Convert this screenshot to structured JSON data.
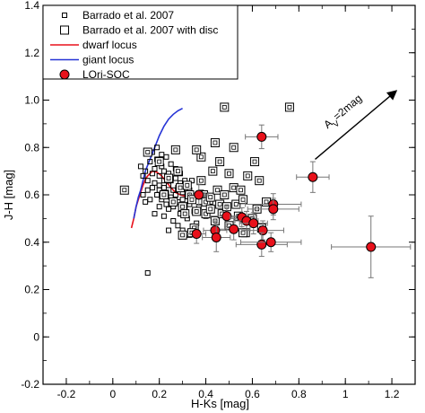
{
  "chart_data": {
    "type": "scatter",
    "title": "",
    "xlabel": "H-Ks [mag]",
    "ylabel": "J-H [mag]",
    "xlim": [
      -0.3,
      1.3
    ],
    "ylim": [
      -0.2,
      1.4
    ],
    "xticks": [
      -0.2,
      0,
      0.2,
      0.4,
      0.6,
      0.8,
      1,
      1.2
    ],
    "xtick_labels": [
      "-0.2",
      "0",
      "0.2",
      "0.4",
      "0.6",
      "0.8",
      "1",
      "1.2"
    ],
    "yticks": [
      -0.2,
      0,
      0.2,
      0.4,
      0.6,
      0.8,
      1.0,
      1.2,
      1.4
    ],
    "ytick_labels": [
      "-0.2",
      "0",
      "0.2",
      "0.4",
      "0.6",
      "0.8",
      "1.0",
      "1.2",
      "1.4"
    ],
    "grid": false,
    "legend_position": "top-left",
    "annotation": {
      "text_main": "A",
      "text_sub": "V",
      "text_rest": "=2mag",
      "arrow_from": [
        0.87,
        0.75
      ],
      "arrow_to": [
        1.22,
        1.04
      ]
    },
    "series": [
      {
        "name": "Barrado et al. 2007",
        "kind": "small-square",
        "color": "#000000",
        "points": [
          [
            0.12,
            0.72
          ],
          [
            0.13,
            0.68
          ],
          [
            0.14,
            0.7
          ],
          [
            0.15,
            0.66
          ],
          [
            0.16,
            0.74
          ],
          [
            0.17,
            0.69
          ],
          [
            0.17,
            0.63
          ],
          [
            0.18,
            0.71
          ],
          [
            0.18,
            0.65
          ],
          [
            0.19,
            0.6
          ],
          [
            0.19,
            0.75
          ],
          [
            0.2,
            0.68
          ],
          [
            0.2,
            0.62
          ],
          [
            0.21,
            0.72
          ],
          [
            0.21,
            0.58
          ],
          [
            0.22,
            0.66
          ],
          [
            0.22,
            0.7
          ],
          [
            0.23,
            0.61
          ],
          [
            0.23,
            0.56
          ],
          [
            0.24,
            0.64
          ],
          [
            0.24,
            0.69
          ],
          [
            0.25,
            0.59
          ],
          [
            0.25,
            0.73
          ],
          [
            0.26,
            0.62
          ],
          [
            0.26,
            0.55
          ],
          [
            0.27,
            0.67
          ],
          [
            0.27,
            0.6
          ],
          [
            0.28,
            0.63
          ],
          [
            0.28,
            0.57
          ],
          [
            0.29,
            0.65
          ],
          [
            0.29,
            0.52
          ],
          [
            0.3,
            0.61
          ],
          [
            0.3,
            0.58
          ],
          [
            0.31,
            0.54
          ],
          [
            0.32,
            0.6
          ],
          [
            0.32,
            0.5
          ],
          [
            0.33,
            0.56
          ],
          [
            0.34,
            0.59
          ],
          [
            0.35,
            0.53
          ],
          [
            0.36,
            0.48
          ],
          [
            0.16,
            0.58
          ],
          [
            0.15,
            0.62
          ],
          [
            0.14,
            0.57
          ],
          [
            0.13,
            0.6
          ],
          [
            0.18,
            0.52
          ],
          [
            0.2,
            0.55
          ],
          [
            0.22,
            0.51
          ],
          [
            0.24,
            0.54
          ],
          [
            0.26,
            0.49
          ],
          [
            0.28,
            0.47
          ],
          [
            0.17,
            0.78
          ],
          [
            0.19,
            0.8
          ],
          [
            0.21,
            0.77
          ],
          [
            0.23,
            0.76
          ],
          [
            0.2,
            0.64
          ],
          [
            0.22,
            0.63
          ],
          [
            0.25,
            0.66
          ],
          [
            0.27,
            0.71
          ],
          [
            0.29,
            0.69
          ],
          [
            0.31,
            0.66
          ],
          [
            0.33,
            0.62
          ],
          [
            0.34,
            0.66
          ],
          [
            0.37,
            0.55
          ],
          [
            0.38,
            0.61
          ],
          [
            0.4,
            0.51
          ],
          [
            0.42,
            0.57
          ],
          [
            0.15,
            0.27
          ],
          [
            0.3,
            0.45
          ],
          [
            0.33,
            0.43
          ],
          [
            0.24,
            0.45
          ]
        ]
      },
      {
        "name": "Barrado et al. 2007 with disc",
        "kind": "open-square",
        "color": "#000000",
        "points": [
          [
            0.05,
            0.62
          ],
          [
            0.15,
            0.78
          ],
          [
            0.2,
            0.74
          ],
          [
            0.22,
            0.6
          ],
          [
            0.24,
            0.67
          ],
          [
            0.26,
            0.57
          ],
          [
            0.28,
            0.7
          ],
          [
            0.29,
            0.63
          ],
          [
            0.3,
            0.55
          ],
          [
            0.31,
            0.52
          ],
          [
            0.32,
            0.64
          ],
          [
            0.33,
            0.6
          ],
          [
            0.34,
            0.58
          ],
          [
            0.35,
            0.46
          ],
          [
            0.36,
            0.53
          ],
          [
            0.38,
            0.76
          ],
          [
            0.38,
            0.66
          ],
          [
            0.39,
            0.6
          ],
          [
            0.4,
            0.57
          ],
          [
            0.4,
            0.52
          ],
          [
            0.42,
            0.59
          ],
          [
            0.42,
            0.54
          ],
          [
            0.43,
            0.7
          ],
          [
            0.44,
            0.82
          ],
          [
            0.44,
            0.49
          ],
          [
            0.45,
            0.62
          ],
          [
            0.46,
            0.56
          ],
          [
            0.47,
            0.52
          ],
          [
            0.48,
            0.6
          ],
          [
            0.49,
            0.55
          ],
          [
            0.5,
            0.69
          ],
          [
            0.5,
            0.47
          ],
          [
            0.52,
            0.63
          ],
          [
            0.53,
            0.56
          ],
          [
            0.54,
            0.51
          ],
          [
            0.55,
            0.62
          ],
          [
            0.56,
            0.58
          ],
          [
            0.57,
            0.44
          ],
          [
            0.6,
            0.5
          ],
          [
            0.62,
            0.54
          ],
          [
            0.64,
            0.46
          ],
          [
            0.48,
            0.97
          ],
          [
            0.61,
            0.74
          ],
          [
            0.63,
            0.66
          ],
          [
            0.66,
            0.57
          ],
          [
            0.76,
            0.97
          ],
          [
            0.36,
            0.79
          ],
          [
            0.27,
            0.79
          ],
          [
            0.56,
            0.44
          ],
          [
            0.46,
            0.74
          ],
          [
            0.52,
            0.8
          ],
          [
            0.58,
            0.68
          ],
          [
            0.34,
            0.44
          ],
          [
            0.3,
            0.43
          ]
        ]
      },
      {
        "name": "dwarf locus",
        "kind": "line",
        "color": "#e8111b",
        "points": [
          [
            0.08,
            0.46
          ],
          [
            0.09,
            0.5
          ],
          [
            0.1,
            0.55
          ],
          [
            0.11,
            0.58
          ],
          [
            0.12,
            0.61
          ],
          [
            0.13,
            0.64
          ],
          [
            0.14,
            0.665
          ],
          [
            0.15,
            0.68
          ],
          [
            0.17,
            0.7
          ],
          [
            0.19,
            0.695
          ],
          [
            0.21,
            0.68
          ],
          [
            0.23,
            0.655
          ],
          [
            0.25,
            0.63
          ],
          [
            0.27,
            0.61
          ],
          [
            0.29,
            0.6
          ],
          [
            0.31,
            0.595
          ]
        ]
      },
      {
        "name": "giant locus",
        "kind": "line",
        "color": "#2634d6",
        "points": [
          [
            0.09,
            0.5
          ],
          [
            0.1,
            0.55
          ],
          [
            0.11,
            0.59
          ],
          [
            0.12,
            0.62
          ],
          [
            0.13,
            0.66
          ],
          [
            0.14,
            0.7
          ],
          [
            0.16,
            0.75
          ],
          [
            0.18,
            0.8
          ],
          [
            0.2,
            0.85
          ],
          [
            0.22,
            0.89
          ],
          [
            0.24,
            0.92
          ],
          [
            0.26,
            0.94
          ],
          [
            0.28,
            0.955
          ],
          [
            0.3,
            0.965
          ]
        ]
      },
      {
        "name": "LOri-SOC",
        "kind": "filled-circle",
        "color": "#e8111b",
        "points": [
          {
            "x": 0.64,
            "y": 0.845,
            "xerr": 0.07,
            "yerr": 0.05
          },
          {
            "x": 0.86,
            "y": 0.675,
            "xerr": 0.07,
            "yerr": 0.065
          },
          {
            "x": 0.69,
            "y": 0.56,
            "xerr": 0.12,
            "yerr": 0.045
          },
          {
            "x": 0.69,
            "y": 0.54,
            "xerr": 0.11,
            "yerr": 0.045
          },
          {
            "x": 0.37,
            "y": 0.6,
            "xerr": 0.04,
            "yerr": 0.045
          },
          {
            "x": 0.49,
            "y": 0.51,
            "xerr": 0.07,
            "yerr": 0.045
          },
          {
            "x": 0.555,
            "y": 0.505,
            "xerr": 0.05,
            "yerr": 0.04
          },
          {
            "x": 0.575,
            "y": 0.49,
            "xerr": 0.05,
            "yerr": 0.04
          },
          {
            "x": 0.605,
            "y": 0.48,
            "xerr": 0.06,
            "yerr": 0.045
          },
          {
            "x": 0.645,
            "y": 0.45,
            "xerr": 0.09,
            "yerr": 0.04
          },
          {
            "x": 0.52,
            "y": 0.455,
            "xerr": 0.07,
            "yerr": 0.045
          },
          {
            "x": 0.44,
            "y": 0.45,
            "xerr": 0.05,
            "yerr": 0.04
          },
          {
            "x": 0.36,
            "y": 0.435,
            "xerr": 0.04,
            "yerr": 0.04
          },
          {
            "x": 0.445,
            "y": 0.42,
            "xerr": 0.06,
            "yerr": 0.06
          },
          {
            "x": 0.64,
            "y": 0.39,
            "xerr": 0.11,
            "yerr": 0.05
          },
          {
            "x": 0.68,
            "y": 0.4,
            "xerr": 0.13,
            "yerr": 0.04
          },
          {
            "x": 1.11,
            "y": 0.38,
            "xerr": 0.17,
            "yerr": 0.13
          }
        ]
      }
    ]
  }
}
